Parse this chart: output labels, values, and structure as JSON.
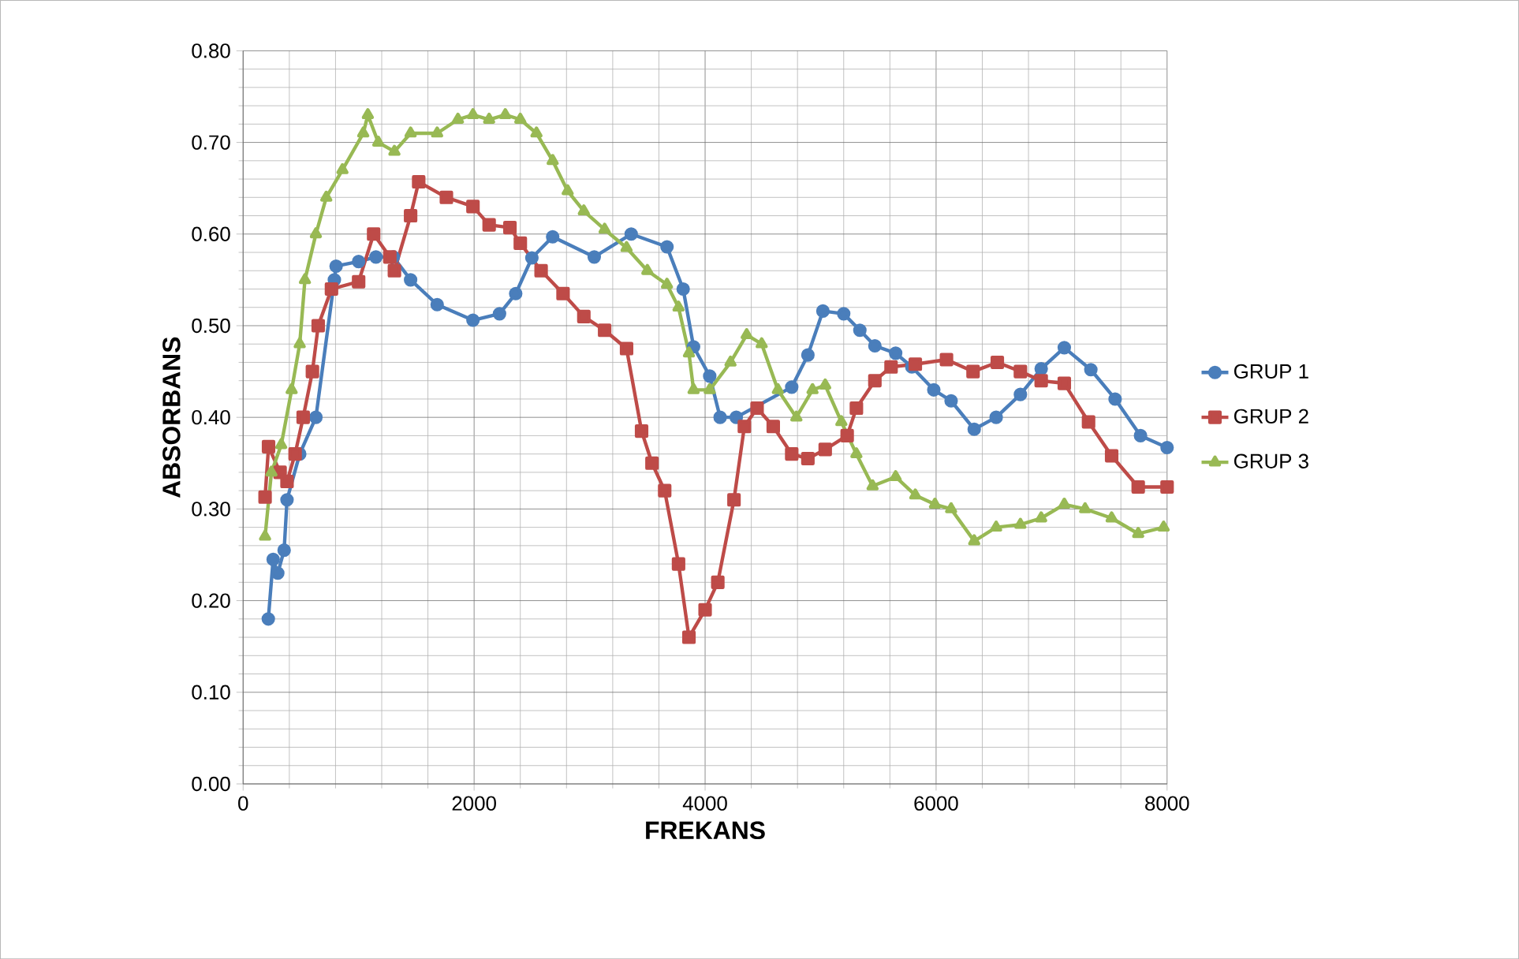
{
  "chart_data": {
    "type": "line",
    "xlabel": "FREKANS",
    "ylabel": "ABSORBANS",
    "xlim": [
      0,
      8000
    ],
    "ylim": [
      0,
      0.8
    ],
    "xticks": [
      0,
      2000,
      4000,
      6000,
      8000
    ],
    "yticks": [
      {
        "value": 0,
        "label": "0.00"
      },
      {
        "value": 0.1,
        "label": "0.10"
      },
      {
        "value": 0.2,
        "label": "0.20"
      },
      {
        "value": 0.3,
        "label": "0.30"
      },
      {
        "value": 0.4,
        "label": "0.40"
      },
      {
        "value": 0.5,
        "label": "0.50"
      },
      {
        "value": 0.6,
        "label": "0.60"
      },
      {
        "value": 0.7,
        "label": "0.70"
      },
      {
        "value": 0.8,
        "label": "0.80"
      }
    ],
    "grid": true,
    "legend": "right",
    "line_style": "solid",
    "series": [
      {
        "name": "GRUP 1",
        "color": "#4a7ebb",
        "marker": "circle",
        "x": [
          218,
          260,
          300,
          355,
          380,
          490,
          630,
          790,
          805,
          1000,
          1150,
          1300,
          1450,
          1680,
          1990,
          2220,
          2360,
          2500,
          2680,
          3040,
          3360,
          3670,
          3810,
          3900,
          4040,
          4130,
          4270,
          4750,
          4890,
          5020,
          5200,
          5340,
          5470,
          5650,
          5790,
          5980,
          6130,
          6330,
          6520,
          6730,
          6910,
          7110,
          7340,
          7550,
          7770,
          8000
        ],
        "values": [
          0.18,
          0.245,
          0.23,
          0.255,
          0.31,
          0.36,
          0.4,
          0.55,
          0.565,
          0.57,
          0.575,
          0.575,
          0.55,
          0.523,
          0.506,
          0.513,
          0.535,
          0.574,
          0.597,
          0.575,
          0.6,
          0.586,
          0.54,
          0.477,
          0.445,
          0.4,
          0.4,
          0.433,
          0.468,
          0.516,
          0.513,
          0.495,
          0.478,
          0.47,
          0.455,
          0.43,
          0.418,
          0.387,
          0.4,
          0.425,
          0.453,
          0.476,
          0.452,
          0.42,
          0.38,
          0.367
        ]
      },
      {
        "name": "GRUP 2",
        "color": "#be4b48",
        "marker": "square",
        "x": [
          190,
          220,
          320,
          380,
          450,
          520,
          600,
          650,
          765,
          1000,
          1130,
          1270,
          1310,
          1450,
          1520,
          1760,
          1990,
          2130,
          2310,
          2400,
          2580,
          2770,
          2950,
          3130,
          3320,
          3450,
          3540,
          3650,
          3770,
          3860,
          4000,
          4110,
          4250,
          4340,
          4450,
          4590,
          4750,
          4890,
          5040,
          5230,
          5310,
          5470,
          5610,
          5820,
          6090,
          6320,
          6530,
          6730,
          6910,
          7110,
          7320,
          7520,
          7750,
          8000
        ],
        "values": [
          0.313,
          0.368,
          0.34,
          0.33,
          0.36,
          0.4,
          0.45,
          0.5,
          0.54,
          0.548,
          0.6,
          0.575,
          0.56,
          0.62,
          0.657,
          0.64,
          0.63,
          0.61,
          0.607,
          0.59,
          0.56,
          0.535,
          0.51,
          0.495,
          0.475,
          0.385,
          0.35,
          0.32,
          0.24,
          0.16,
          0.19,
          0.22,
          0.31,
          0.39,
          0.41,
          0.39,
          0.36,
          0.355,
          0.365,
          0.38,
          0.41,
          0.44,
          0.455,
          0.458,
          0.463,
          0.45,
          0.46,
          0.45,
          0.44,
          0.437,
          0.395,
          0.358,
          0.324,
          0.324
        ]
      },
      {
        "name": "GRUP 3",
        "color": "#98b954",
        "marker": "triangle",
        "x": [
          190,
          245,
          330,
          420,
          490,
          535,
          630,
          720,
          860,
          1040,
          1080,
          1170,
          1310,
          1450,
          1680,
          1860,
          1990,
          2130,
          2270,
          2400,
          2540,
          2680,
          2810,
          2950,
          3130,
          3320,
          3500,
          3670,
          3770,
          3860,
          3900,
          4040,
          4220,
          4360,
          4490,
          4630,
          4790,
          4930,
          5040,
          5180,
          5310,
          5450,
          5650,
          5820,
          5990,
          6130,
          6330,
          6520,
          6730,
          6910,
          7110,
          7290,
          7520,
          7750,
          7970
        ],
        "values": [
          0.27,
          0.34,
          0.37,
          0.43,
          0.48,
          0.55,
          0.6,
          0.64,
          0.67,
          0.71,
          0.73,
          0.7,
          0.69,
          0.71,
          0.71,
          0.725,
          0.73,
          0.725,
          0.73,
          0.725,
          0.71,
          0.68,
          0.647,
          0.625,
          0.605,
          0.585,
          0.56,
          0.545,
          0.52,
          0.47,
          0.43,
          0.43,
          0.46,
          0.49,
          0.48,
          0.43,
          0.4,
          0.43,
          0.435,
          0.395,
          0.36,
          0.325,
          0.335,
          0.315,
          0.305,
          0.3,
          0.265,
          0.28,
          0.283,
          0.29,
          0.305,
          0.3,
          0.29,
          0.273,
          0.28
        ]
      }
    ]
  }
}
